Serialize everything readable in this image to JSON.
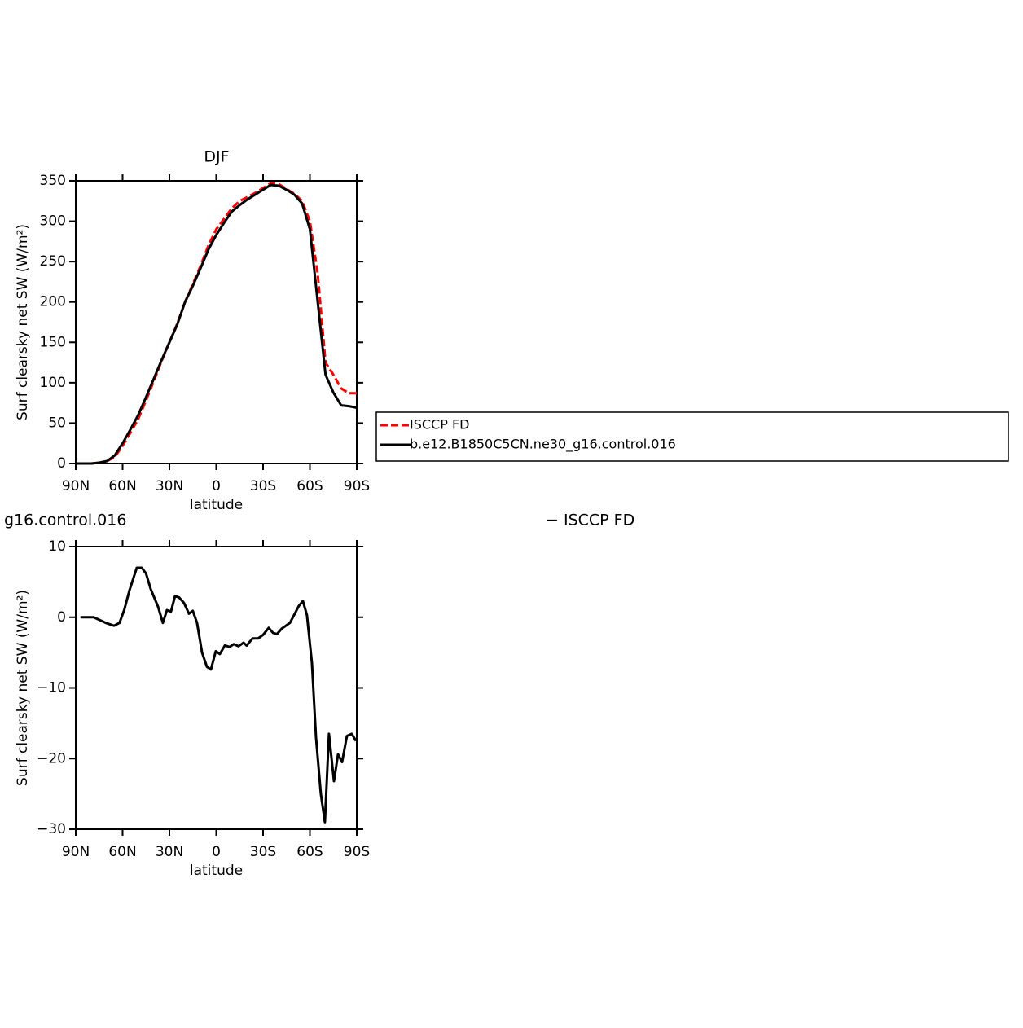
{
  "chart_data": [
    {
      "type": "line",
      "title": "DJF",
      "xlabel": "latitude",
      "ylabel": "Surf clearsky net SW (W/m²)",
      "x": [
        90,
        85,
        80,
        75,
        70,
        65,
        60,
        55,
        50,
        45,
        40,
        35,
        30,
        25,
        20,
        15,
        10,
        5,
        0,
        -5,
        -10,
        -15,
        -20,
        -25,
        -30,
        -35,
        -40,
        -45,
        -50,
        -55,
        -60,
        -65,
        -70,
        -75,
        -80,
        -85,
        -90
      ],
      "xlim": [
        90,
        -90
      ],
      "xticks": [
        {
          "value": 90,
          "label": "90N"
        },
        {
          "value": 60,
          "label": "60N"
        },
        {
          "value": 30,
          "label": "30N"
        },
        0,
        {
          "value": -30,
          "label": "30S"
        },
        {
          "value": -60,
          "label": "60S"
        },
        {
          "value": -90,
          "label": "90S"
        }
      ],
      "ylim": [
        0,
        350
      ],
      "yticks": [
        0,
        50,
        100,
        150,
        200,
        250,
        300,
        350
      ],
      "legend": "right",
      "series": [
        {
          "name": "ISCCP FD",
          "color": "#ff0000",
          "line_style": "dashed",
          "values": [
            0,
            0,
            0,
            1,
            3,
            8,
            22,
            38,
            55,
            78,
            102,
            127,
            150,
            173,
            200,
            222,
            245,
            270,
            290,
            303,
            316,
            325,
            330,
            335,
            341,
            347,
            346,
            340,
            334,
            325,
            300,
            235,
            125,
            110,
            93,
            87,
            87
          ]
        },
        {
          "name": "b.e12.B1850C5CN.ne30_g16.control.016",
          "color": "#000000",
          "line_style": "solid",
          "values": [
            0,
            0,
            0,
            1,
            3,
            10,
            25,
            42,
            60,
            82,
            105,
            128,
            150,
            172,
            200,
            220,
            242,
            265,
            283,
            298,
            312,
            320,
            327,
            333,
            339,
            345,
            344,
            339,
            333,
            322,
            290,
            200,
            110,
            88,
            72,
            71,
            69
          ]
        }
      ]
    },
    {
      "type": "line",
      "title": "g16.control.016",
      "subtitle": "− ISCCP FD",
      "xlabel": "latitude",
      "ylabel": "Surf clearsky net SW (W/m²)",
      "xlim": [
        90,
        -90
      ],
      "xticks": [
        {
          "value": 90,
          "label": "90N"
        },
        {
          "value": 60,
          "label": "60N"
        },
        {
          "value": 30,
          "label": "30N"
        },
        0,
        {
          "value": -30,
          "label": "30S"
        },
        {
          "value": -60,
          "label": "60S"
        },
        {
          "value": -90,
          "label": "90S"
        }
      ],
      "ylim": [
        -30,
        10
      ],
      "yticks": [
        {
          "value": -30,
          "label": "−30"
        },
        {
          "value": -20,
          "label": "−20"
        },
        {
          "value": -10,
          "label": "−10"
        },
        0,
        10
      ],
      "series": [
        {
          "color": "#000000",
          "line_style": "solid",
          "x": [
            87,
            78.5,
            70.7,
            65.5,
            62,
            59,
            55.6,
            50.9,
            47.7,
            45,
            42,
            37.3,
            34.2,
            31.6,
            29,
            26.4,
            23.8,
            20.6,
            17.5,
            15,
            12.3,
            9.1,
            6,
            3.4,
            0.3,
            -2.3,
            -5.5,
            -8.6,
            -11.2,
            -14.3,
            -17.5,
            -19.5,
            -23.2,
            -26.8,
            -30,
            -33.6,
            -36.3,
            -38.8,
            -42,
            -47.2,
            -50.3,
            -52.9,
            -55.5,
            -58.1,
            -61.3,
            -63.9,
            -67,
            -69.6,
            -72.2,
            -75.4,
            -78,
            -80.6,
            -83.7,
            -86.8,
            -89.5
          ],
          "values": [
            0,
            0,
            -0.8,
            -1.2,
            -0.8,
            1,
            3.8,
            7,
            7,
            6.2,
            4,
            1.5,
            -0.8,
            1,
            0.8,
            3,
            2.8,
            2,
            0.5,
            0.9,
            -0.8,
            -5,
            -7,
            -7.4,
            -4.8,
            -5.2,
            -4,
            -4.2,
            -3.8,
            -4.1,
            -3.6,
            -4,
            -3,
            -3,
            -2.5,
            -1.5,
            -2.2,
            -2.4,
            -1.6,
            -0.8,
            0.5,
            1.6,
            2.3,
            0.3,
            -6.5,
            -17,
            -25,
            -29,
            -16.5,
            -23.2,
            -19.4,
            -20.5,
            -16.8,
            -16.5,
            -17.5
          ]
        }
      ]
    }
  ]
}
